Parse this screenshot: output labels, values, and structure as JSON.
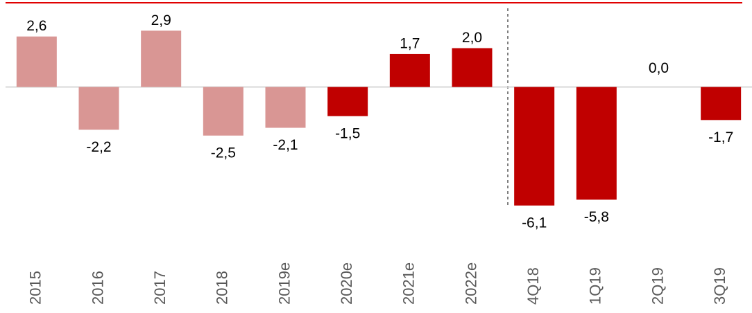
{
  "chart_data": {
    "type": "bar",
    "categories": [
      "2015",
      "2016",
      "2017",
      "2018",
      "2019e",
      "2020e",
      "2021e",
      "2022e",
      "4Q18",
      "1Q19",
      "2Q19",
      "3Q19"
    ],
    "values": [
      2.6,
      -2.2,
      2.9,
      -2.5,
      -2.1,
      -1.5,
      1.7,
      2.0,
      -6.1,
      -5.8,
      0.0,
      -1.7
    ],
    "value_labels": [
      "2,6",
      "-2,2",
      "2,9",
      "-2,5",
      "-2,1",
      "-1,5",
      "1,7",
      "2,0",
      "-6,1",
      "-5,8",
      "0,0",
      "-1,7"
    ],
    "colors": [
      "#d99694",
      "#d99694",
      "#d99694",
      "#d99694",
      "#d99694",
      "#c00000",
      "#c00000",
      "#c00000",
      "#c00000",
      "#c00000",
      "#c00000",
      "#c00000"
    ],
    "ylim": [
      -6.5,
      4.3
    ]
  }
}
